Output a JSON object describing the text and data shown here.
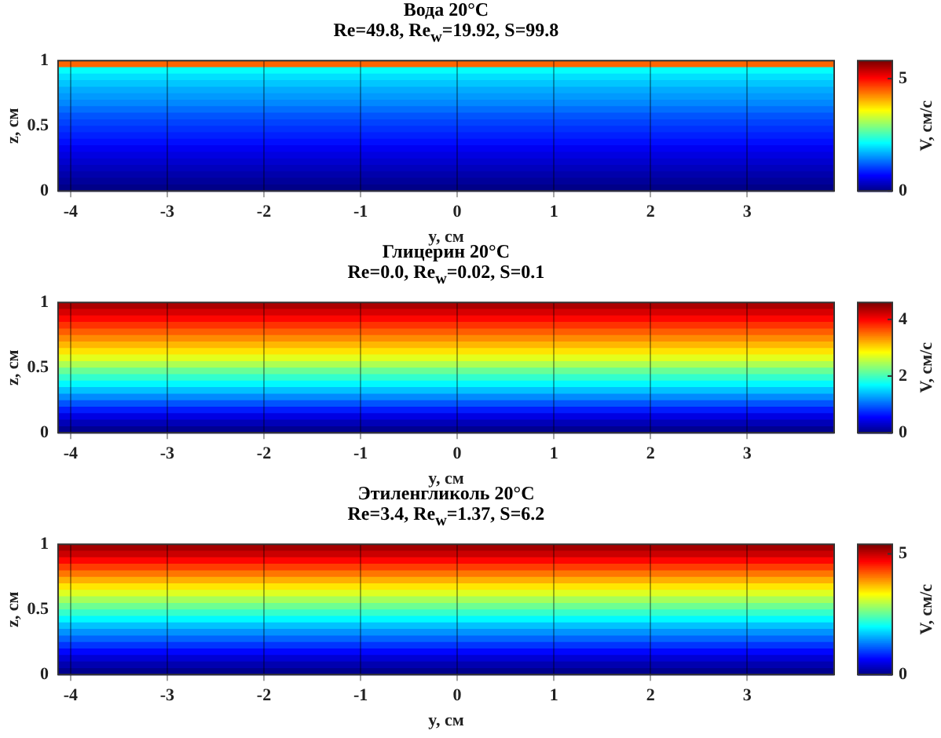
{
  "chart_data": [
    {
      "type": "heatmap",
      "title": "Вода 20°C",
      "subtitle": "Re=49.8, Re$_{w}$=19.92, S=99.8",
      "xlabel": "y, см",
      "ylabel": "z, см",
      "clabel": "V, см/с",
      "cells": [
        [
          4.5
        ],
        [
          2.2
        ],
        [
          2.0
        ],
        [
          1.85
        ],
        [
          1.7
        ],
        [
          1.6
        ],
        [
          1.5
        ],
        [
          1.35
        ],
        [
          1.2
        ],
        [
          1.1
        ],
        [
          1.0
        ],
        [
          0.9
        ],
        [
          0.8
        ],
        [
          0.65
        ],
        [
          0.55
        ],
        [
          0.45
        ],
        [
          0.35
        ],
        [
          0.25
        ],
        [
          0.15
        ],
        [
          0.05
        ]
      ],
      "xlim": [
        -4.13,
        3.9
      ],
      "xticks": [
        -4,
        -3,
        -2,
        -1,
        0,
        1,
        2,
        3
      ],
      "ylim": [
        0,
        1
      ],
      "yticks": [
        0,
        0.5,
        1
      ],
      "clim": [
        0,
        5.8
      ],
      "cticks": [
        0,
        5
      ],
      "grid": "x"
    },
    {
      "type": "heatmap",
      "title": "Глицерин 20°C",
      "subtitle": "Re=0.0, Re$_{w}$=0.02, S=0.1",
      "xlabel": "y, см",
      "ylabel": "z, см",
      "clabel": "V, см/с",
      "cells": [
        [
          4.4
        ],
        [
          4.2
        ],
        [
          4.0
        ],
        [
          3.8
        ],
        [
          3.6
        ],
        [
          3.4
        ],
        [
          3.2
        ],
        [
          3.0
        ],
        [
          2.75
        ],
        [
          2.5
        ],
        [
          2.2
        ],
        [
          1.95
        ],
        [
          1.7
        ],
        [
          1.45
        ],
        [
          1.2
        ],
        [
          0.95
        ],
        [
          0.7
        ],
        [
          0.45
        ],
        [
          0.25
        ],
        [
          0.08
        ]
      ],
      "xlim": [
        -4.13,
        3.9
      ],
      "xticks": [
        -4,
        -3,
        -2,
        -1,
        0,
        1,
        2,
        3
      ],
      "ylim": [
        0,
        1
      ],
      "yticks": [
        0,
        0.5,
        1
      ],
      "clim": [
        0,
        4.6
      ],
      "cticks": [
        0,
        2,
        4
      ],
      "grid": "x"
    },
    {
      "type": "heatmap",
      "title": "Этиленгликоль 20°C",
      "subtitle": "Re=3.4, Re$_{w}$=1.37, S=6.2",
      "xlabel": "y, см",
      "ylabel": "z, см",
      "clabel": "V, см/с",
      "cells": [
        [
          5.2
        ],
        [
          5.0
        ],
        [
          4.7
        ],
        [
          4.4
        ],
        [
          4.1
        ],
        [
          3.8
        ],
        [
          3.5
        ],
        [
          3.2
        ],
        [
          2.9
        ],
        [
          2.6
        ],
        [
          2.3
        ],
        [
          2.0
        ],
        [
          1.7
        ],
        [
          1.45
        ],
        [
          1.2
        ],
        [
          0.95
        ],
        [
          0.7
        ],
        [
          0.45
        ],
        [
          0.25
        ],
        [
          0.08
        ]
      ],
      "xlim": [
        -4.13,
        3.9
      ],
      "xticks": [
        -4,
        -3,
        -2,
        -1,
        0,
        1,
        2,
        3
      ],
      "ylim": [
        0,
        1
      ],
      "yticks": [
        0,
        0.5,
        1
      ],
      "clim": [
        0,
        5.4
      ],
      "cticks": [
        0,
        5
      ],
      "grid": "x"
    }
  ]
}
